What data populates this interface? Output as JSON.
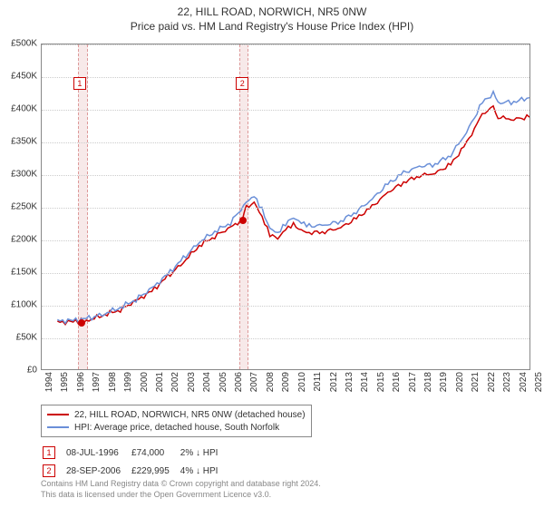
{
  "title": "22, HILL ROAD, NORWICH, NR5 0NW",
  "subtitle": "Price paid vs. HM Land Registry's House Price Index (HPI)",
  "chart": {
    "type": "line",
    "background_color": "#ffffff",
    "grid_color": "#cccccc",
    "plot_border_color": "#888888",
    "y_axis": {
      "min": 0,
      "max": 500000,
      "step": 50000,
      "format_prefix": "£",
      "format_suffix": "K",
      "divisor": 1000,
      "ticks_label": [
        "£0",
        "£50K",
        "£100K",
        "£150K",
        "£200K",
        "£250K",
        "£300K",
        "£350K",
        "£400K",
        "£450K",
        "£500K"
      ]
    },
    "x_axis": {
      "min": 1994,
      "max": 2025,
      "step": 1
    },
    "shaded_regions": [
      {
        "from": 1996.3,
        "to": 1996.9,
        "color": "#f7e9e9",
        "border_color": "#dd9999"
      },
      {
        "from": 2006.5,
        "to": 2007.1,
        "color": "#f7e9e9",
        "border_color": "#dd9999"
      }
    ],
    "markers": [
      {
        "id": "1",
        "x": 1996.0,
        "box_y": 450000,
        "dot_x": 1996.5,
        "dot_y": 74000
      },
      {
        "id": "2",
        "x": 2006.3,
        "box_y": 450000,
        "dot_x": 2006.75,
        "dot_y": 229995
      }
    ],
    "series": [
      {
        "name": "22, HILL ROAD, NORWICH, NR5 0NW (detached house)",
        "color": "#cc0000",
        "line_width": 1.5,
        "data": [
          [
            1995,
            72000
          ],
          [
            1996,
            73000
          ],
          [
            1996.5,
            74000
          ],
          [
            1997,
            76000
          ],
          [
            1998,
            84000
          ],
          [
            1999,
            92000
          ],
          [
            2000,
            105000
          ],
          [
            2001,
            120000
          ],
          [
            2002,
            142000
          ],
          [
            2003,
            165000
          ],
          [
            2004,
            190000
          ],
          [
            2005,
            205000
          ],
          [
            2006,
            218000
          ],
          [
            2006.75,
            229995
          ],
          [
            2007,
            248000
          ],
          [
            2007.5,
            258000
          ],
          [
            2008,
            235000
          ],
          [
            2008.5,
            208000
          ],
          [
            2009,
            200000
          ],
          [
            2009.5,
            215000
          ],
          [
            2010,
            222000
          ],
          [
            2010.5,
            215000
          ],
          [
            2011,
            210000
          ],
          [
            2012,
            212000
          ],
          [
            2013,
            218000
          ],
          [
            2014,
            232000
          ],
          [
            2015,
            250000
          ],
          [
            2016,
            272000
          ],
          [
            2017,
            288000
          ],
          [
            2018,
            298000
          ],
          [
            2019,
            302000
          ],
          [
            2020,
            315000
          ],
          [
            2021,
            348000
          ],
          [
            2022,
            392000
          ],
          [
            2022.7,
            405000
          ],
          [
            2023,
            388000
          ],
          [
            2024,
            385000
          ],
          [
            2025,
            388000
          ]
        ]
      },
      {
        "name": "HPI: Average price, detached house, South Norfolk",
        "color": "#6a8fd8",
        "line_width": 1.5,
        "data": [
          [
            1995,
            74000
          ],
          [
            1996,
            75000
          ],
          [
            1997,
            78000
          ],
          [
            1998,
            86000
          ],
          [
            1999,
            95000
          ],
          [
            2000,
            108000
          ],
          [
            2001,
            124000
          ],
          [
            2002,
            146000
          ],
          [
            2003,
            170000
          ],
          [
            2004,
            196000
          ],
          [
            2005,
            212000
          ],
          [
            2006,
            226000
          ],
          [
            2007,
            256000
          ],
          [
            2007.5,
            266000
          ],
          [
            2008,
            245000
          ],
          [
            2008.5,
            218000
          ],
          [
            2009,
            210000
          ],
          [
            2009.5,
            225000
          ],
          [
            2010,
            232000
          ],
          [
            2010.5,
            225000
          ],
          [
            2011,
            220000
          ],
          [
            2012,
            222000
          ],
          [
            2013,
            228000
          ],
          [
            2014,
            243000
          ],
          [
            2015,
            262000
          ],
          [
            2016,
            285000
          ],
          [
            2017,
            302000
          ],
          [
            2018,
            312000
          ],
          [
            2019,
            316000
          ],
          [
            2020,
            330000
          ],
          [
            2021,
            365000
          ],
          [
            2022,
            410000
          ],
          [
            2022.7,
            425000
          ],
          [
            2023,
            410000
          ],
          [
            2024,
            412000
          ],
          [
            2025,
            418000
          ]
        ]
      }
    ]
  },
  "legend": {
    "border_color": "#888888",
    "items": [
      {
        "color": "#cc0000",
        "label": "22, HILL ROAD, NORWICH, NR5 0NW (detached house)"
      },
      {
        "color": "#6a8fd8",
        "label": "HPI: Average price, detached house, South Norfolk"
      }
    ]
  },
  "sales": [
    {
      "id": "1",
      "date": "08-JUL-1996",
      "price": "£74,000",
      "delta": "2% ↓ HPI"
    },
    {
      "id": "2",
      "date": "28-SEP-2006",
      "price": "£229,995",
      "delta": "4% ↓ HPI"
    }
  ],
  "footer": {
    "line1": "Contains HM Land Registry data © Crown copyright and database right 2024.",
    "line2": "This data is licensed under the Open Government Licence v3.0."
  }
}
